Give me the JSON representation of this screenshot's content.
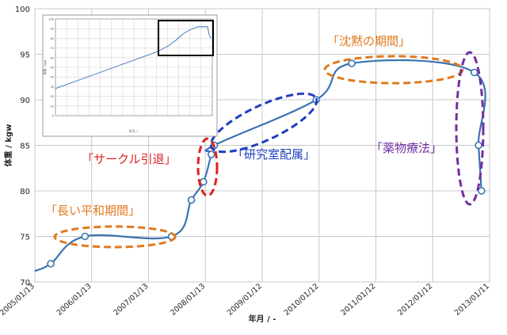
{
  "chart_data": {
    "type": "line",
    "xlabel": "年月 / -",
    "ylabel": "体重 / kgw",
    "ylim": [
      70,
      100
    ],
    "yticks": [
      70,
      75,
      80,
      85,
      90,
      95,
      100
    ],
    "xticks": [
      "2005/01/13",
      "2006/01/13",
      "2007/01/13",
      "2008/01/13",
      "2009/01/12",
      "2010/01/12",
      "2011/01/12",
      "2012/01/12",
      "2013/01/11"
    ],
    "grid": true,
    "line_color": "#3a73b2",
    "series": [
      {
        "x": [
          "2005/01/13",
          "2005/04/25",
          "2005/12/01",
          "2007/06/10",
          "2007/10/15",
          "2008/01/01",
          "2008/02/20",
          "2008/03/10",
          "2009/12/25",
          "2010/08/10",
          "2012/10/05",
          "2012/11/01",
          "2012/11/20"
        ],
        "values": [
          71.2,
          72.0,
          75.0,
          75.0,
          79.0,
          81.0,
          84.0,
          85.0,
          90.0,
          94.0,
          93.0,
          85.0,
          80.0
        ],
        "markers": [
          false,
          true,
          true,
          true,
          true,
          true,
          true,
          true,
          true,
          true,
          true,
          true,
          true
        ]
      }
    ],
    "annotations": [
      {
        "text": "「長い平和期間」",
        "color": "#e0791f"
      },
      {
        "text": "「サークル引退」",
        "color": "#e02020"
      },
      {
        "text": "「研究室配属」",
        "color": "#1f3fbf"
      },
      {
        "text": "「沈黙の期間」",
        "color": "#e0791f"
      },
      {
        "text": "「薬物療法」",
        "color": "#7030a0"
      }
    ],
    "inset": {
      "type": "line",
      "xlabel": "年月 / -",
      "ylabel": "体重 / kgw",
      "ylim": [
        0,
        100
      ],
      "yticks": [
        0,
        10,
        20,
        30,
        40,
        50,
        60,
        70,
        80,
        90,
        100
      ],
      "highlight_box": true
    }
  }
}
